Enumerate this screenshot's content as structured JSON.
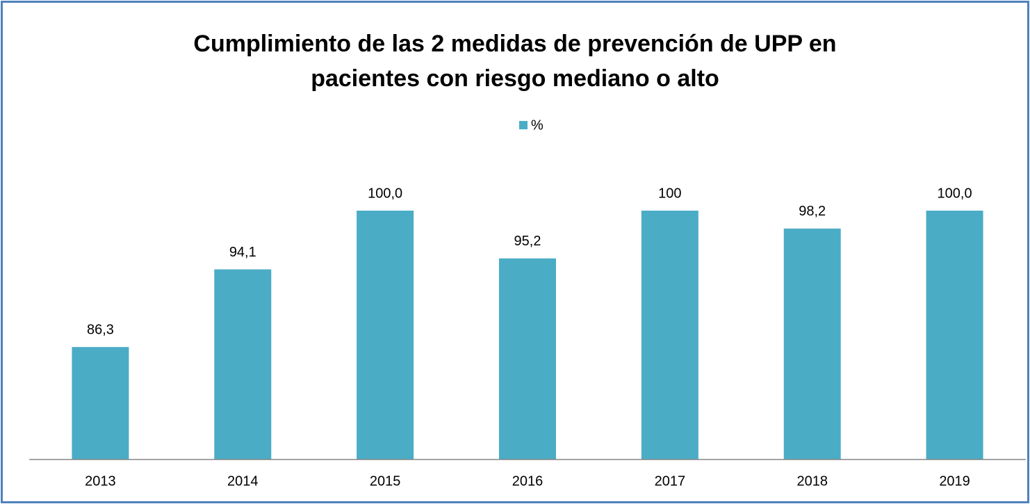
{
  "chart_data": {
    "type": "bar",
    "title": "Cumplimiento de las 2 medidas de prevención de UPP en pacientes con riesgo mediano o alto",
    "categories": [
      "2013",
      "2014",
      "2015",
      "2016",
      "2017",
      "2018",
      "2019"
    ],
    "series": [
      {
        "name": "%",
        "color": "#4bacc6",
        "values": [
          86.3,
          94.1,
          100,
          95.2,
          100,
          98.2,
          100
        ],
        "value_labels": [
          "86,3",
          "94,1",
          "100,0",
          "95,2",
          "100",
          "98,2",
          "100,0"
        ]
      }
    ],
    "ylim": [
      75,
      100
    ],
    "legend": "top"
  }
}
